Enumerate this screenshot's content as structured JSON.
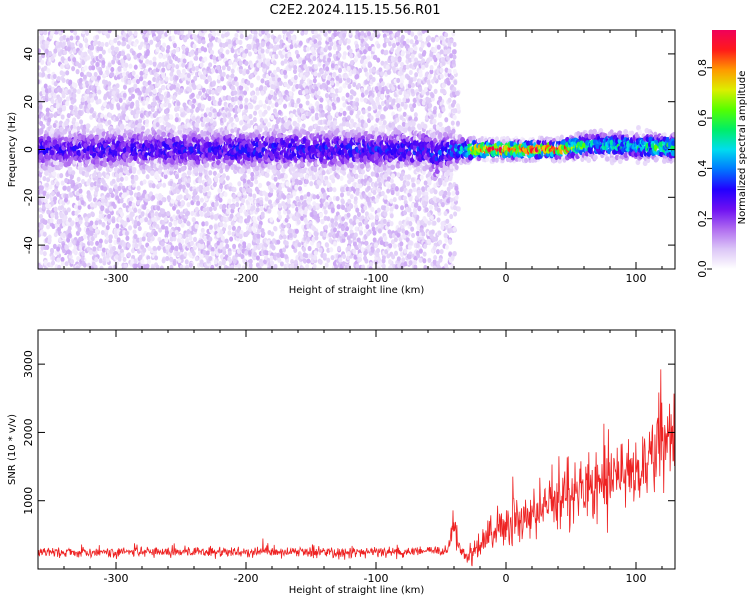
{
  "title": "C2E2.2024.115.15.56.R01",
  "colors": {
    "snr_line": "#ee2222",
    "colormap": [
      "#ffffff",
      "#dcc6f7",
      "#b06cf0",
      "#6e10f2",
      "#2200ff",
      "#0077ff",
      "#00ddee",
      "#00ee66",
      "#55ff00",
      "#ddee00",
      "#ff9900",
      "#ff1a1a",
      "#f0005a"
    ]
  },
  "chart_data": [
    {
      "type": "heatmap",
      "title": "C2E2.2024.115.15.56.R01",
      "xlabel": "Height of straight line (km)",
      "ylabel": "Frequency (Hz)",
      "xlim": [
        -360,
        130
      ],
      "ylim": [
        -50,
        50
      ],
      "x_ticks": [
        -300,
        -200,
        -100,
        0,
        100
      ],
      "y_ticks": [
        -40,
        -20,
        0,
        20,
        40
      ],
      "colorbar": {
        "label": "Normalized spectral amplitude",
        "range": [
          0.0,
          0.95
        ],
        "ticks": [
          0.0,
          0.2,
          0.4,
          0.6,
          0.8
        ]
      },
      "profile": [
        {
          "x": -360,
          "centre_hz": 0,
          "core_halfwidth_hz": 5,
          "scatter_halfwidth_hz": 50,
          "peak_amplitude": 0.3
        },
        {
          "x": -60,
          "centre_hz": 0,
          "core_halfwidth_hz": 5,
          "scatter_halfwidth_hz": 50,
          "peak_amplitude": 0.35
        },
        {
          "x": -55,
          "centre_hz": -3,
          "core_halfwidth_hz": 6,
          "scatter_halfwidth_hz": 50,
          "peak_amplitude": 0.35
        },
        {
          "x": -40,
          "centre_hz": 0,
          "core_halfwidth_hz": 4,
          "scatter_halfwidth_hz": 50,
          "peak_amplitude": 0.4
        },
        {
          "x": -35,
          "centre_hz": 0,
          "core_halfwidth_hz": 3,
          "scatter_halfwidth_hz": 5,
          "peak_amplitude": 0.5
        },
        {
          "x": -20,
          "centre_hz": 0,
          "core_halfwidth_hz": 2,
          "scatter_halfwidth_hz": 5,
          "peak_amplitude": 0.9
        },
        {
          "x": 40,
          "centre_hz": 0,
          "core_halfwidth_hz": 2,
          "scatter_halfwidth_hz": 5,
          "peak_amplitude": 0.95
        },
        {
          "x": 65,
          "centre_hz": 2,
          "core_halfwidth_hz": 3,
          "scatter_halfwidth_hz": 6,
          "peak_amplitude": 0.5
        },
        {
          "x": 130,
          "centre_hz": 1,
          "core_halfwidth_hz": 3,
          "scatter_halfwidth_hz": 6,
          "peak_amplitude": 0.6
        }
      ]
    },
    {
      "type": "line",
      "xlabel": "Height of straight line (km)",
      "ylabel": "SNR (10 * v/v)",
      "xlim": [
        -360,
        130
      ],
      "ylim": [
        0,
        3500
      ],
      "x_ticks": [
        -300,
        -200,
        -100,
        0,
        100
      ],
      "y_ticks": [
        1000,
        2000,
        3000
      ],
      "series": [
        {
          "x": [
            -360,
            -300,
            -200,
            -100,
            -45,
            -40,
            -35,
            -30,
            -20,
            0,
            50,
            100,
            130
          ],
          "y": [
            250,
            250,
            250,
            250,
            260,
            700,
            300,
            150,
            350,
            650,
            1050,
            1500,
            2000
          ],
          "noise": [
            70,
            70,
            70,
            70,
            70,
            250,
            120,
            80,
            200,
            300,
            400,
            500,
            600
          ]
        }
      ]
    }
  ]
}
